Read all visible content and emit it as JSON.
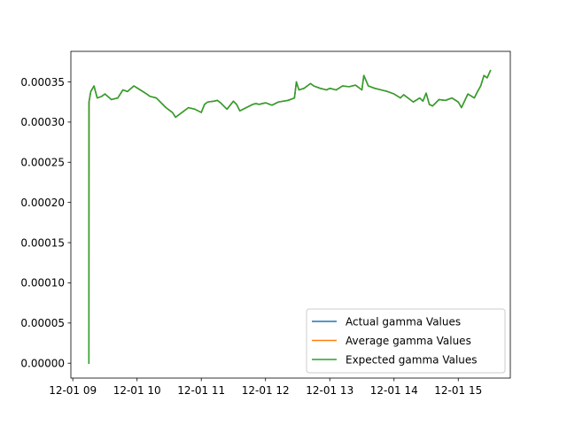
{
  "chart_data": {
    "type": "line",
    "title": "",
    "xlabel": "",
    "ylabel": "",
    "x_ticks": [
      "12-01 09",
      "12-01 10",
      "12-01 11",
      "12-01 12",
      "12-01 13",
      "12-01 14",
      "12-01 15"
    ],
    "x_tick_hours": [
      9,
      10,
      11,
      12,
      13,
      14,
      15
    ],
    "xlim_hours": [
      8.97,
      15.81
    ],
    "y_ticks": [
      "0.00000",
      "0.00005",
      "0.00010",
      "0.00015",
      "0.00020",
      "0.00025",
      "0.00030",
      "0.00035"
    ],
    "y_tick_values": [
      0,
      5e-05,
      0.0001,
      0.00015,
      0.0002,
      0.00025,
      0.0003,
      0.00035
    ],
    "ylim": [
      -1.85e-05,
      0.000388
    ],
    "grid": false,
    "legend_position": "lower-right",
    "x_hours": [
      9.25,
      9.252,
      9.28,
      9.33,
      9.38,
      9.45,
      9.5,
      9.6,
      9.7,
      9.78,
      9.85,
      9.95,
      10.05,
      10.15,
      10.2,
      10.3,
      10.4,
      10.45,
      10.55,
      10.6,
      10.7,
      10.8,
      10.9,
      11.0,
      11.05,
      11.1,
      11.2,
      11.25,
      11.3,
      11.4,
      11.5,
      11.55,
      11.6,
      11.7,
      11.8,
      11.85,
      11.9,
      12.0,
      12.1,
      12.2,
      12.35,
      12.45,
      12.48,
      12.52,
      12.6,
      12.7,
      12.75,
      12.85,
      12.95,
      13.0,
      13.1,
      13.2,
      13.3,
      13.4,
      13.5,
      13.53,
      13.6,
      13.7,
      13.8,
      13.9,
      14.0,
      14.1,
      14.15,
      14.25,
      14.3,
      14.4,
      14.45,
      14.5,
      14.55,
      14.6,
      14.7,
      14.8,
      14.9,
      15.0,
      15.05,
      15.15,
      15.25,
      15.3,
      15.35,
      15.4,
      15.45,
      15.5
    ],
    "series": [
      {
        "name": "Actual gamma Values",
        "color": "#1f77b4",
        "values": [
          0.0,
          0.000325,
          0.000338,
          0.000345,
          0.00033,
          0.000332,
          0.000335,
          0.000328,
          0.00033,
          0.00034,
          0.000338,
          0.000345,
          0.00034,
          0.000335,
          0.000332,
          0.00033,
          0.000322,
          0.000318,
          0.000312,
          0.000306,
          0.000312,
          0.000318,
          0.000316,
          0.000312,
          0.000322,
          0.000325,
          0.000326,
          0.000327,
          0.000324,
          0.000316,
          0.000326,
          0.000322,
          0.000314,
          0.000318,
          0.000322,
          0.000323,
          0.000322,
          0.000324,
          0.000321,
          0.000325,
          0.000327,
          0.00033,
          0.00035,
          0.00034,
          0.000342,
          0.000348,
          0.000345,
          0.000342,
          0.00034,
          0.000342,
          0.00034,
          0.000345,
          0.000344,
          0.000346,
          0.00034,
          0.000358,
          0.000345,
          0.000342,
          0.00034,
          0.000338,
          0.000335,
          0.00033,
          0.000334,
          0.000328,
          0.000325,
          0.00033,
          0.000326,
          0.000336,
          0.000322,
          0.00032,
          0.000328,
          0.000327,
          0.00033,
          0.000325,
          0.000318,
          0.000335,
          0.00033,
          0.000338,
          0.000345,
          0.000358,
          0.000355,
          0.000364
        ]
      },
      {
        "name": "Average gamma Values",
        "color": "#ff7f0e",
        "values": [
          0.0,
          0.000325,
          0.000338,
          0.000345,
          0.00033,
          0.000332,
          0.000335,
          0.000328,
          0.00033,
          0.00034,
          0.000338,
          0.000345,
          0.00034,
          0.000335,
          0.000332,
          0.00033,
          0.000322,
          0.000318,
          0.000312,
          0.000306,
          0.000312,
          0.000318,
          0.000316,
          0.000312,
          0.000322,
          0.000325,
          0.000326,
          0.000327,
          0.000324,
          0.000316,
          0.000326,
          0.000322,
          0.000314,
          0.000318,
          0.000322,
          0.000323,
          0.000322,
          0.000324,
          0.000321,
          0.000325,
          0.000327,
          0.00033,
          0.00035,
          0.00034,
          0.000342,
          0.000348,
          0.000345,
          0.000342,
          0.00034,
          0.000342,
          0.00034,
          0.000345,
          0.000344,
          0.000346,
          0.00034,
          0.000358,
          0.000345,
          0.000342,
          0.00034,
          0.000338,
          0.000335,
          0.00033,
          0.000334,
          0.000328,
          0.000325,
          0.00033,
          0.000326,
          0.000336,
          0.000322,
          0.00032,
          0.000328,
          0.000327,
          0.00033,
          0.000325,
          0.000318,
          0.000335,
          0.00033,
          0.000338,
          0.000345,
          0.000358,
          0.000355,
          0.000364
        ]
      },
      {
        "name": "Expected gamma Values",
        "color": "#2ca02c",
        "values": [
          0.0,
          0.000325,
          0.000338,
          0.000345,
          0.00033,
          0.000332,
          0.000335,
          0.000328,
          0.00033,
          0.00034,
          0.000338,
          0.000345,
          0.00034,
          0.000335,
          0.000332,
          0.00033,
          0.000322,
          0.000318,
          0.000312,
          0.000306,
          0.000312,
          0.000318,
          0.000316,
          0.000312,
          0.000322,
          0.000325,
          0.000326,
          0.000327,
          0.000324,
          0.000316,
          0.000326,
          0.000322,
          0.000314,
          0.000318,
          0.000322,
          0.000323,
          0.000322,
          0.000324,
          0.000321,
          0.000325,
          0.000327,
          0.00033,
          0.00035,
          0.00034,
          0.000342,
          0.000348,
          0.000345,
          0.000342,
          0.00034,
          0.000342,
          0.00034,
          0.000345,
          0.000344,
          0.000346,
          0.00034,
          0.000358,
          0.000345,
          0.000342,
          0.00034,
          0.000338,
          0.000335,
          0.00033,
          0.000334,
          0.000328,
          0.000325,
          0.00033,
          0.000326,
          0.000336,
          0.000322,
          0.00032,
          0.000328,
          0.000327,
          0.00033,
          0.000325,
          0.000318,
          0.000335,
          0.00033,
          0.000338,
          0.000345,
          0.000358,
          0.000355,
          0.000364
        ]
      }
    ]
  }
}
